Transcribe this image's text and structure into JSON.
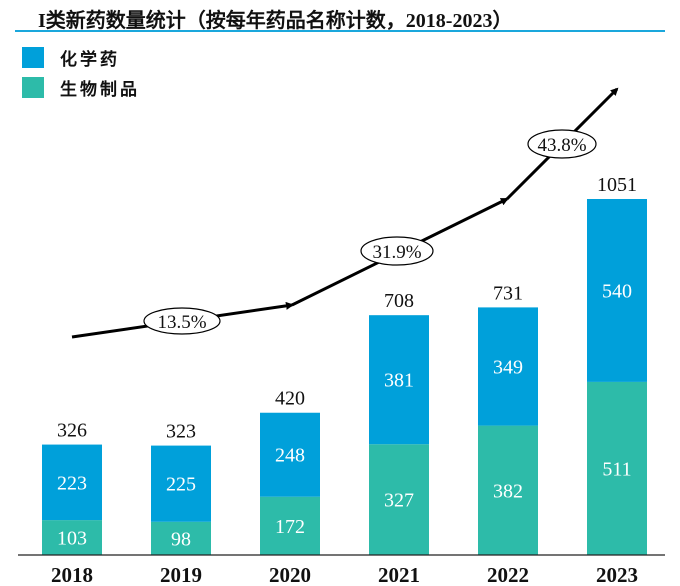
{
  "chart_data": {
    "type": "bar",
    "stacked": true,
    "title": "I类新药数量统计（按每年药品名称计数，2018-2023）",
    "categories": [
      "2018",
      "2019",
      "2020",
      "2021",
      "2022",
      "2023"
    ],
    "series": [
      {
        "name": "生物制品",
        "color": "#2dbba9",
        "values": [
          103,
          98,
          172,
          327,
          382,
          511
        ]
      },
      {
        "name": "化学药",
        "color": "#00a0da",
        "values": [
          223,
          225,
          248,
          381,
          349,
          540
        ]
      }
    ],
    "totals": [
      326,
      323,
      420,
      708,
      731,
      1051
    ],
    "legend": [
      "化学药",
      "生物制品"
    ],
    "legend_position": "top-left",
    "ylim": [
      0,
      1051
    ],
    "grid": false,
    "growth_annotations": [
      {
        "label": "13.5%",
        "from": "2018",
        "to": "2020"
      },
      {
        "label": "31.9%",
        "from": "2020",
        "to": "2022"
      },
      {
        "label": "43.8%",
        "from": "2022",
        "to": "2023"
      }
    ]
  }
}
